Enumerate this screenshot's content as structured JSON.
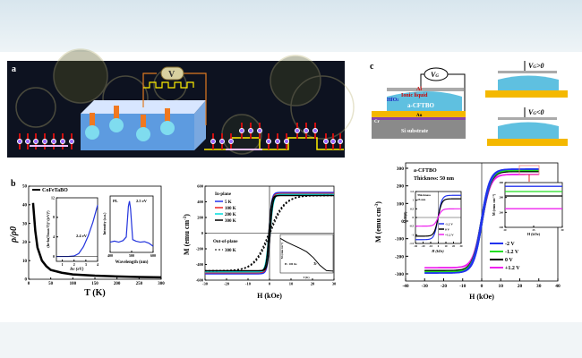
{
  "panels": {
    "a": "a",
    "b": "b",
    "c": "c"
  },
  "panel_a": {
    "voltmeter": "V"
  },
  "panel_c_schematic": {
    "vg": "V",
    "vg_sub": "G",
    "al": "Al",
    "ionic": "Ionic liquid",
    "hfo2": "HfO",
    "hfo2_sub": "2",
    "film": "a-CFTBO",
    "au": "Au",
    "cr": "Cr",
    "si": "Si substrate",
    "vg_pos": ">0",
    "vg_neg": "<0"
  },
  "chart_data": [
    {
      "id": "rho",
      "type": "line",
      "xlabel": "T (K)",
      "ylabel": "ρ/ρ0",
      "xlim": [
        0,
        300
      ],
      "ylim": [
        0,
        50
      ],
      "xticks": [
        0,
        50,
        100,
        150,
        200,
        250,
        300
      ],
      "yticks": [
        0,
        10,
        20,
        30,
        40,
        50
      ],
      "series": [
        {
          "name": "CoFeTaBO",
          "color": "#000000",
          "x": [
            10,
            15,
            20,
            30,
            40,
            50,
            75,
            100,
            150,
            200,
            250,
            300
          ],
          "y": [
            41,
            26,
            17,
            10,
            7,
            5,
            3.5,
            2.6,
            1.9,
            1.5,
            1.2,
            1.0
          ]
        }
      ]
    },
    {
      "id": "rho_inset_abs",
      "type": "line",
      "xlabel": "hν (eV)",
      "ylabel": "(hν·ln(Tmax/T))² ((eV)²)",
      "xlim": [
        0.5,
        4
      ],
      "ylim": [
        -1,
        12
      ],
      "xticks": [
        1,
        2,
        3,
        4
      ],
      "yticks": [
        0,
        4,
        8,
        12
      ],
      "annotation": "2.4 eV",
      "series": [
        {
          "color": "#2233dd",
          "x": [
            0.5,
            1,
            1.5,
            2,
            2.4,
            2.8,
            3.2,
            3.6,
            4
          ],
          "y": [
            0,
            0,
            0,
            0.1,
            0.6,
            2,
            4.2,
            7,
            10.5
          ]
        }
      ]
    },
    {
      "id": "rho_inset_pl",
      "type": "line",
      "xlabel": "Wavelength (nm)",
      "ylabel": "Intensity (a.u.)",
      "xlim": [
        400,
        600
      ],
      "label": "PL",
      "annotation": "2.5 eV",
      "xticks": [
        400,
        500,
        600
      ],
      "series": [
        {
          "color": "#2233dd",
          "x": [
            400,
            420,
            440,
            460,
            475,
            485,
            490,
            495,
            505,
            520,
            540,
            560,
            580,
            600
          ],
          "y": [
            0.2,
            0.22,
            0.2,
            0.23,
            0.3,
            0.9,
            1.0,
            0.85,
            0.25,
            0.22,
            0.2,
            0.21,
            0.18,
            0.12
          ]
        }
      ]
    },
    {
      "id": "mh_b",
      "type": "line",
      "xlabel": "H (kOe)",
      "ylabel": "M (emu cm",
      "ylabel_sup": "-3",
      "ylabel_close": ")",
      "xlim": [
        -30,
        30
      ],
      "ylim": [
        -600,
        600
      ],
      "xticks": [
        -30,
        -20,
        -10,
        0,
        10,
        20,
        30
      ],
      "yticks": [
        -600,
        -400,
        -200,
        0,
        200,
        400,
        600
      ],
      "legend_inplane": "In-plane",
      "legend_outplane": "Out-of-plane",
      "series": [
        {
          "name": "5 K",
          "color": "#2233ee",
          "ms": 520,
          "hw": 1.3
        },
        {
          "name": "100 K",
          "color": "#ee2222",
          "ms": 505,
          "hw": 1.4
        },
        {
          "name": "200 K",
          "color": "#00dddd",
          "ms": 495,
          "hw": 1.5
        },
        {
          "name": "300 K",
          "color": "#000000",
          "ms": 480,
          "hw": 1.2
        },
        {
          "name": "300 K",
          "group": "out",
          "color": "#000000",
          "ms": 480,
          "hw": 7,
          "dashed": true
        }
      ],
      "inset": {
        "xlabel": "T (K)",
        "ylabel": "M (emu cm⁻³)",
        "legend": "H↓ 100 Oe",
        "annotation": "Tc",
        "x": [
          0,
          50,
          100,
          150,
          200,
          250,
          300,
          350,
          400
        ],
        "y": [
          0.9,
          0.8,
          0.72,
          0.64,
          0.55,
          0.4,
          0.2,
          0.06,
          0.05
        ]
      }
    },
    {
      "id": "mh_c",
      "type": "line",
      "xlabel": "H (kOe)",
      "ylabel": "M (emu cm",
      "ylabel_sup": "-3",
      "ylabel_close": ")",
      "xlim": [
        -40,
        40
      ],
      "ylim": [
        -300,
        300
      ],
      "xticks": [
        -40,
        -30,
        -20,
        -10,
        0,
        10,
        20,
        30,
        40
      ],
      "yticks": [
        -300,
        -200,
        -100,
        0,
        100,
        200,
        300
      ],
      "annotation_1": "a-CFTBO",
      "annotation_2": "Thickness: 50 nm",
      "series": [
        {
          "name": "-2 V",
          "color": "#2233ee",
          "ms": 295
        },
        {
          "name": "-1.2 V",
          "color": "#22dd22",
          "ms": 288
        },
        {
          "name": "0 V",
          "color": "#000000",
          "ms": 282
        },
        {
          "name": "+1.2 V",
          "color": "#ee22ee",
          "ms": 265
        }
      ],
      "inset_left": {
        "label_1": "Thickness",
        "label_2": "25 nm",
        "xlabel": "H (kOe)",
        "ylabel": "M/M(0)",
        "xlim": [
          -30,
          30
        ],
        "ylim": [
          -1.5,
          1.5
        ],
        "xticks": [
          -30,
          -20,
          -10,
          0,
          10,
          20,
          30
        ],
        "yticks": [
          -1.5,
          -1.0,
          -0.5,
          0.0,
          0.5,
          1.0,
          1.5
        ],
        "series": [
          {
            "name": "-1.2 V",
            "color": "#2233ee",
            "ms": 1.28
          },
          {
            "name": "0 V",
            "color": "#000000",
            "ms": 1.08
          },
          {
            "name": "+1.2 V",
            "color": "#ee22ee",
            "ms": 0.5
          }
        ]
      },
      "inset_right": {
        "xlabel": "H (kOe)",
        "ylabel": "M (emu cm⁻³)",
        "xlim": [
          20,
          30
        ],
        "ylim": [
          240,
          300
        ],
        "xticks": [
          20,
          25,
          30
        ],
        "yticks": [
          240,
          260,
          280,
          300
        ],
        "series": [
          {
            "color": "#2233ee",
            "y": 295
          },
          {
            "color": "#22dd22",
            "y": 288
          },
          {
            "color": "#000000",
            "y": 282
          },
          {
            "color": "#ee22ee",
            "y": 265
          }
        ]
      }
    }
  ]
}
